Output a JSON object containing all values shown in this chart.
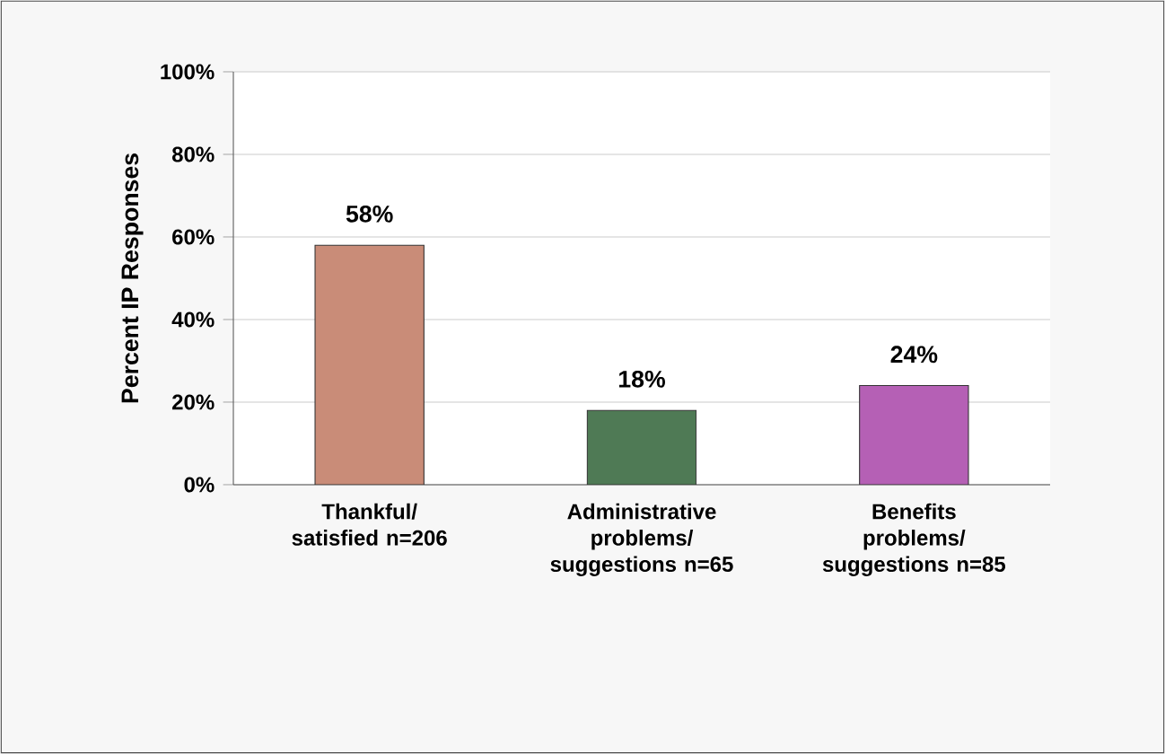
{
  "chart_data": {
    "type": "bar",
    "ylabel": "Percent IP Responses",
    "categories": [
      "Thankful/ satisfied n=206",
      "Administrative problems/ suggestions n=65",
      "Benefits problems/ suggestions n=85"
    ],
    "values": [
      58,
      18,
      24
    ],
    "colors": [
      "#c98c78",
      "#4f7a55",
      "#b560b5"
    ],
    "value_labels": [
      "58%",
      "18%",
      "24%"
    ],
    "ylim": [
      0,
      100
    ],
    "yticks": [
      {
        "value": 0,
        "label": "0%"
      },
      {
        "value": 20,
        "label": "20%"
      },
      {
        "value": 40,
        "label": "40%"
      },
      {
        "value": 60,
        "label": "60%"
      },
      {
        "value": 80,
        "label": "80%"
      },
      {
        "value": 100,
        "label": "100%"
      }
    ],
    "grid": "y"
  }
}
